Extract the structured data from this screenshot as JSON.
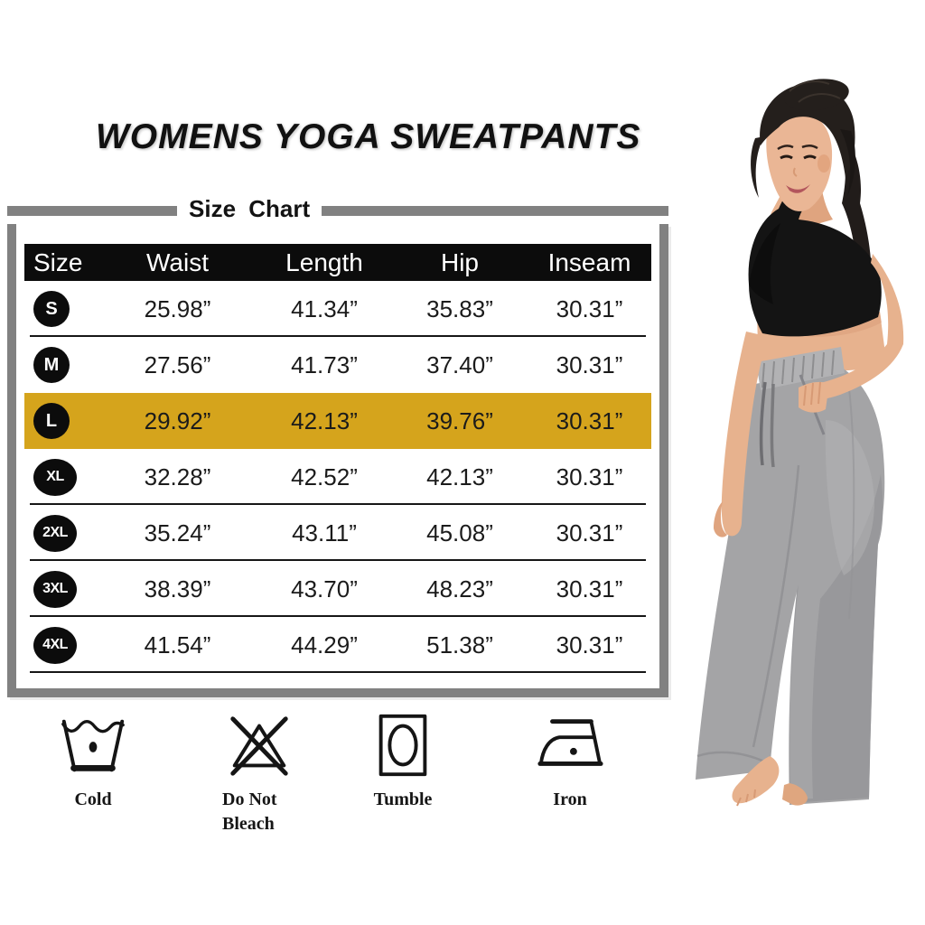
{
  "title": "WOMENS YOGA SWEATPANTS",
  "chart_data": {
    "type": "table",
    "title": "Size Chart",
    "columns": [
      "Size",
      "Waist",
      "Length",
      "Hip",
      "Inseam"
    ],
    "rows": [
      [
        "S",
        "25.98”",
        "41.34”",
        "35.83”",
        "30.31”"
      ],
      [
        "M",
        "27.56”",
        "41.73”",
        "37.40”",
        "30.31”"
      ],
      [
        "L",
        "29.92”",
        "42.13”",
        "39.76”",
        "30.31”"
      ],
      [
        "XL",
        "32.28”",
        "42.52”",
        "42.13”",
        "30.31”"
      ],
      [
        "2XL",
        "35.24”",
        "43.11”",
        "45.08”",
        "30.31”"
      ],
      [
        "3XL",
        "38.39”",
        "43.70”",
        "48.23”",
        "30.31”"
      ],
      [
        "4XL",
        "41.54”",
        "44.29”",
        "51.38”",
        "30.31”"
      ]
    ],
    "highlighted_row": "L",
    "highlight_color": "#D5A41C",
    "header_bg": "#0c0c0c",
    "frame_color": "#818181"
  },
  "care": {
    "items": [
      {
        "icon": "wash-cold-icon",
        "label": "Cold"
      },
      {
        "icon": "do-not-bleach-icon",
        "label": "Do Not Bleach"
      },
      {
        "icon": "tumble-dry-icon",
        "label": "Tumble"
      },
      {
        "icon": "iron-icon",
        "label": "Iron"
      }
    ]
  },
  "model_photo": {
    "alt": "Model in black sports bra and gray wide-leg yoga sweatpants, hand in pocket, barefoot"
  }
}
